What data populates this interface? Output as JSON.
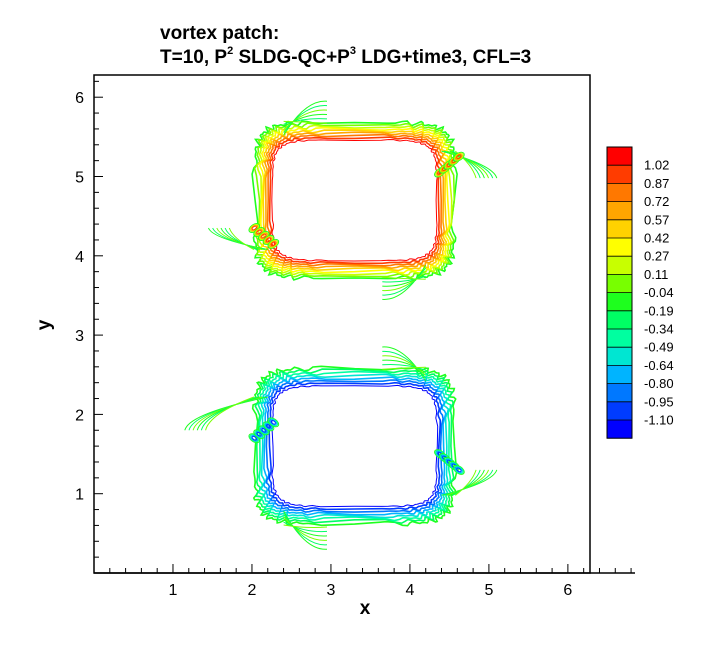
{
  "chart_data": {
    "type": "contour",
    "title": {
      "line1": "vortex patch:",
      "line2_parts": [
        "T=10, P",
        "2",
        " SLDG-QC+P",
        "3",
        " LDG+time3, CFL=3"
      ]
    },
    "xlabel": "x",
    "ylabel": "y",
    "xlim": [
      0,
      6.28
    ],
    "ylim": [
      0,
      6.28
    ],
    "x_ticks": [
      1,
      2,
      3,
      4,
      5,
      6
    ],
    "y_ticks": [
      1,
      2,
      3,
      4,
      5,
      6
    ],
    "grid": false,
    "legend": {
      "placement": "right",
      "levels": [
        "1.02",
        "0.87",
        "0.72",
        "0.57",
        "0.42",
        "0.27",
        "0.11",
        "-0.04",
        "-0.19",
        "-0.34",
        "-0.49",
        "-0.64",
        "-0.80",
        "-0.95",
        "-1.10"
      ],
      "colors": [
        "#ff0000",
        "#ff3c00",
        "#ff7800",
        "#ffa500",
        "#ffd200",
        "#ffff00",
        "#c8ff00",
        "#78ff00",
        "#1eff1e",
        "#00ff64",
        "#00ffa0",
        "#00e6d2",
        "#00b4ff",
        "#0078ff",
        "#003cff",
        "#0000ff"
      ]
    },
    "series": [
      {
        "value_sign": "positive",
        "center": [
          3.3,
          4.7
        ],
        "halfwidth": [
          1.1,
          0.82
        ],
        "shear": "counterclockwise",
        "filaments_end": [
          [
            2.95,
            5.95
          ],
          [
            5.1,
            4.98
          ],
          [
            3.65,
            3.45
          ],
          [
            1.45,
            4.35
          ]
        ]
      },
      {
        "value_sign": "negative",
        "center": [
          3.3,
          1.6
        ],
        "halfwidth": [
          1.1,
          0.82
        ],
        "shear": "clockwise",
        "filaments_end": [
          [
            3.65,
            2.85
          ],
          [
            5.1,
            1.3
          ],
          [
            2.95,
            0.3
          ],
          [
            1.15,
            1.8
          ]
        ]
      }
    ]
  }
}
